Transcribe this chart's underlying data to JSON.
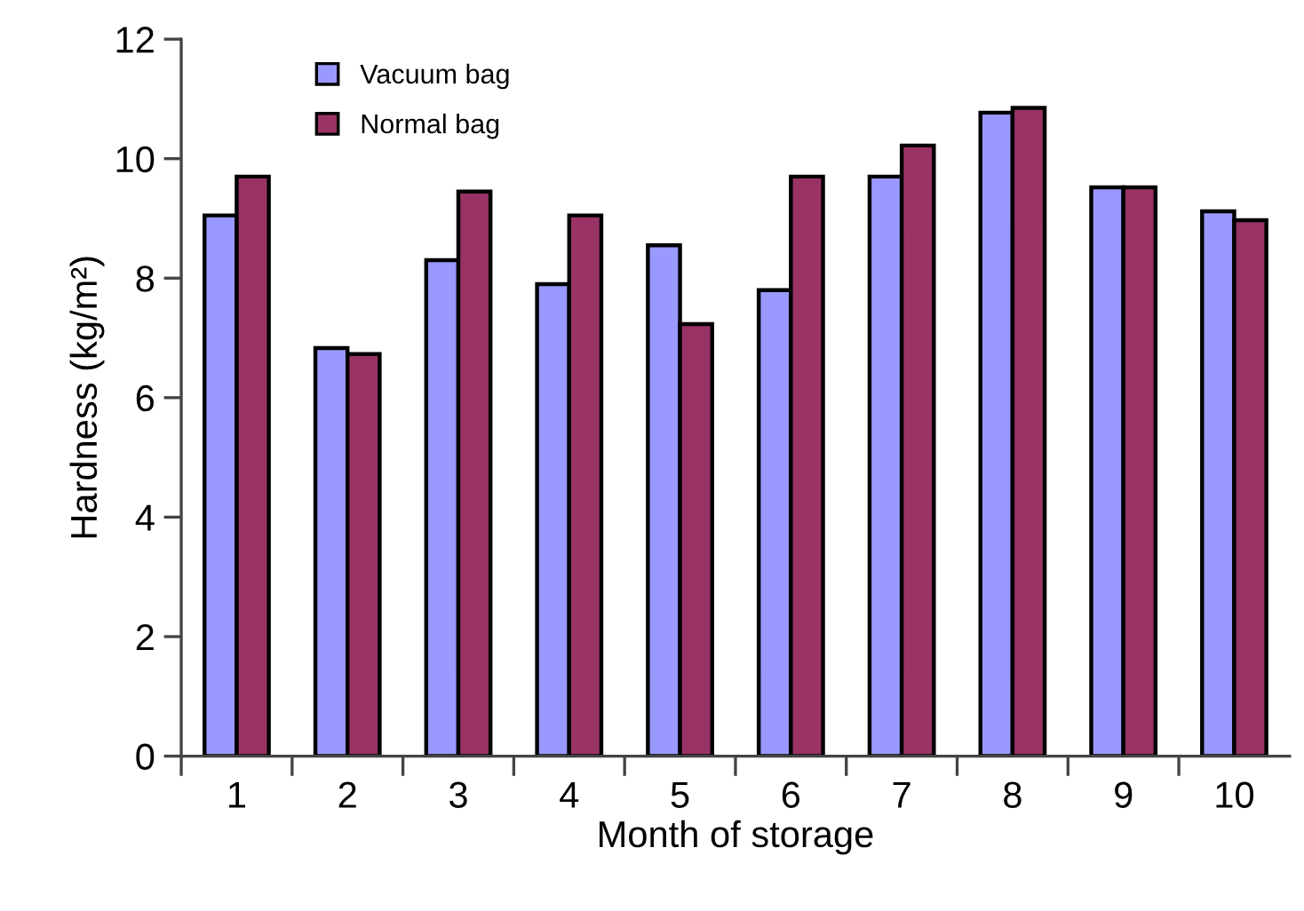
{
  "chart_data": {
    "type": "bar",
    "xlabel": "Month of storage",
    "ylabel": "Hardness (kg/m²)",
    "categories": [
      "1",
      "2",
      "3",
      "4",
      "5",
      "6",
      "7",
      "8",
      "9",
      "10"
    ],
    "series": [
      {
        "name": "Vacuum bag",
        "color": "#9999ff",
        "values": [
          9.05,
          6.83,
          8.3,
          7.9,
          8.55,
          7.8,
          9.7,
          10.77,
          9.52,
          9.12
        ]
      },
      {
        "name": "Normal bag",
        "color": "#993366",
        "values": [
          9.7,
          6.73,
          9.45,
          9.05,
          7.23,
          9.7,
          10.22,
          10.85,
          9.52,
          8.97
        ]
      }
    ],
    "ylim": [
      0,
      12
    ],
    "yticks": [
      0,
      2,
      4,
      6,
      8,
      10,
      12
    ],
    "grid": false,
    "legend": "top left"
  }
}
